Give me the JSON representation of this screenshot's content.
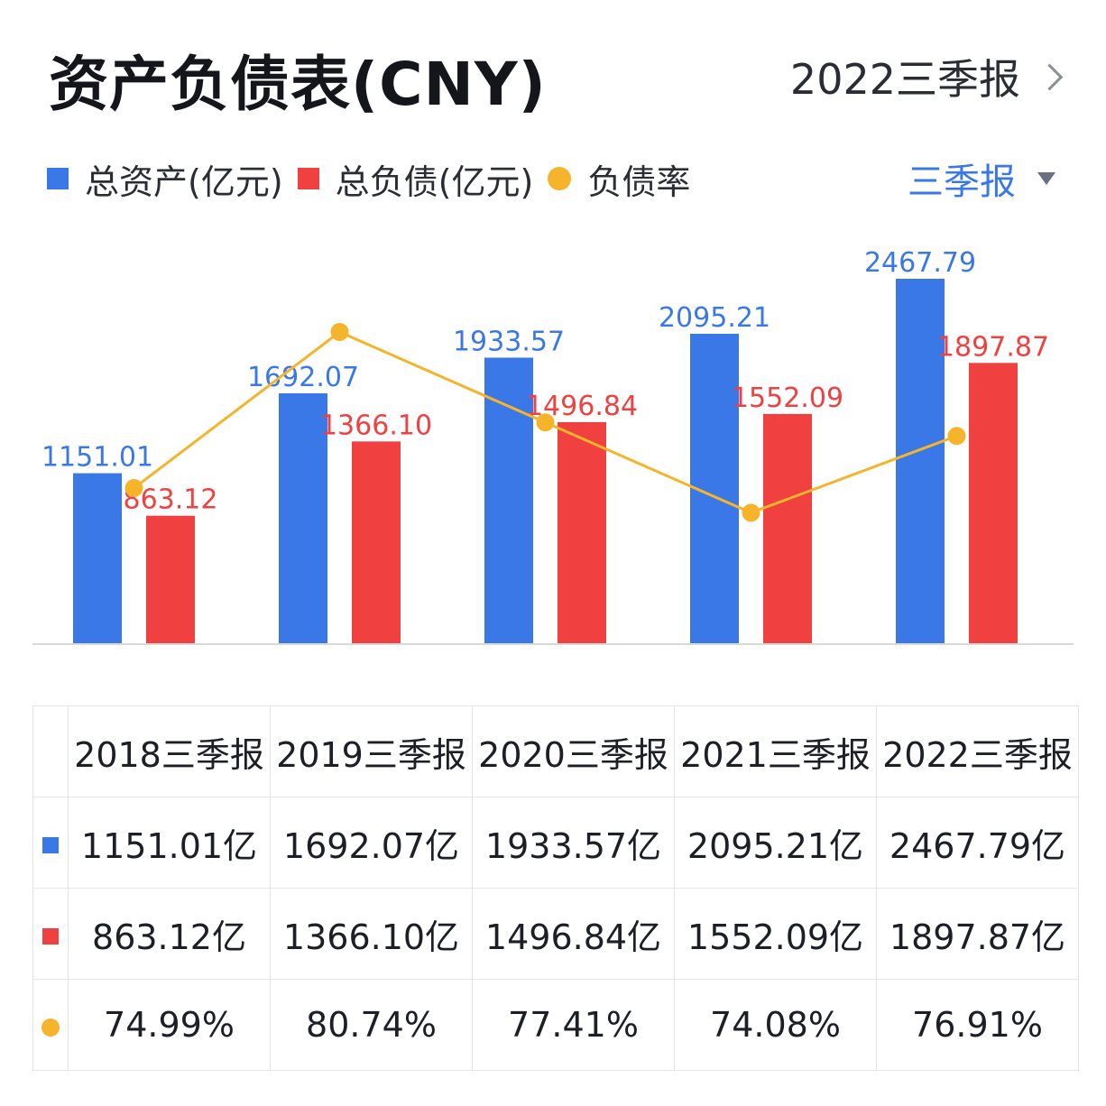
{
  "header": {
    "title": "资产负债表(CNY)",
    "period": "2022三季报"
  },
  "legend": {
    "items": [
      {
        "label": "总资产(亿元)",
        "color": "#3b78e7",
        "shape": "square"
      },
      {
        "label": "总负债(亿元)",
        "color": "#f04040",
        "shape": "square"
      },
      {
        "label": "负债率",
        "color": "#f5b42a",
        "shape": "dot"
      }
    ]
  },
  "period_select": {
    "selected": "三季报",
    "icon": "caret-down-icon"
  },
  "colors": {
    "assets": "#3b78e7",
    "liabilities": "#f04040",
    "ratio": "#f5b42a"
  },
  "chart_data": {
    "type": "bar",
    "categories": [
      "2018三季报",
      "2019三季报",
      "2020三季报",
      "2021三季报",
      "2022三季报"
    ],
    "series": [
      {
        "name": "总资产(亿元)",
        "type": "bar",
        "values": [
          1151.01,
          1692.07,
          1933.57,
          2095.21,
          2467.79
        ],
        "labels": [
          "1151.01",
          "1692.07",
          "1933.57",
          "2095.21",
          "2467.79"
        ]
      },
      {
        "name": "总负债(亿元)",
        "type": "bar",
        "values": [
          863.12,
          1366.1,
          1496.84,
          1552.09,
          1897.87
        ],
        "labels": [
          "863.12",
          "1366.10",
          "1496.84",
          "1552.09",
          "1897.87"
        ]
      },
      {
        "name": "负债率",
        "type": "line",
        "values": [
          74.99,
          80.74,
          77.41,
          74.08,
          76.91
        ]
      }
    ],
    "ylim": [
      0,
      2467.79
    ],
    "ratio_ylim": [
      72.3,
      80.74
    ],
    "legend": "top-left",
    "grid": false
  },
  "table": {
    "columns": [
      "2018三季报",
      "2019三季报",
      "2020三季报",
      "2021三季报",
      "2022三季报"
    ],
    "rows": [
      {
        "marker": "square",
        "color": "#3b78e7",
        "cells": [
          "1151.01亿",
          "1692.07亿",
          "1933.57亿",
          "2095.21亿",
          "2467.79亿"
        ]
      },
      {
        "marker": "square",
        "color": "#f04040",
        "cells": [
          "863.12亿",
          "1366.10亿",
          "1496.84亿",
          "1552.09亿",
          "1897.87亿"
        ]
      },
      {
        "marker": "dot",
        "color": "#f5b42a",
        "cells": [
          "74.99%",
          "80.74%",
          "77.41%",
          "74.08%",
          "76.91%"
        ]
      }
    ]
  }
}
